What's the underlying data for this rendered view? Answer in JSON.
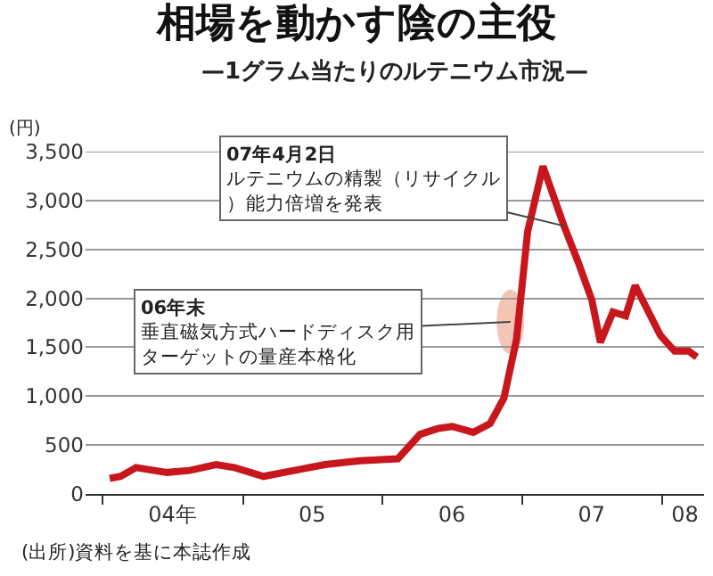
{
  "chart_data": {
    "type": "line",
    "title": "相場を動かす陰の主役",
    "subtitle": "—1グラム当たりのルテニウム市況—",
    "ylabel": "(円)",
    "x": [
      "2004-01-19",
      "2004-02-17",
      "2004-03-28",
      "2004-06-17",
      "2004-08-15",
      "2004-10-23",
      "2004-12-10",
      "2005-02-24",
      "2005-05-27",
      "2005-08-04",
      "2005-11-02",
      "2006-02-10",
      "2006-04-09",
      "2006-05-27",
      "2006-07-02",
      "2006-08-26",
      "2006-10-09",
      "2006-11-14",
      "2006-12-17",
      "2007-01-15",
      "2007-02-24",
      "2007-04-20",
      "2007-05-27",
      "2007-07-02",
      "2007-07-24",
      "2007-08-26",
      "2007-09-28",
      "2007-10-23",
      "2007-12-28",
      "2008-02-03",
      "2008-03-11",
      "2008-04-01"
    ],
    "series": [
      {
        "color": "#c8161d",
        "values": [
          160,
          180,
          270,
          220,
          240,
          300,
          270,
          180,
          250,
          300,
          340,
          360,
          610,
          670,
          690,
          630,
          720,
          980,
          1580,
          2680,
          3350,
          2740,
          2370,
          1980,
          1550,
          1860,
          1820,
          2130,
          1620,
          1460,
          1460,
          1400
        ]
      }
    ],
    "xlim": [
      "2003-11-17",
      "2008-04-20"
    ],
    "xticks": [
      {
        "value": "2004-01-01",
        "label": null
      },
      {
        "value": "2004-07-01",
        "label": "04年"
      },
      {
        "value": "2005-01-01",
        "label": null
      },
      {
        "value": "2005-07-01",
        "label": "05"
      },
      {
        "value": "2006-01-01",
        "label": null
      },
      {
        "value": "2006-07-01",
        "label": "06"
      },
      {
        "value": "2007-01-01",
        "label": null
      },
      {
        "value": "2007-07-01",
        "label": "07"
      },
      {
        "value": "2008-01-01",
        "label": null
      },
      {
        "value": "2008-03-01",
        "label": "08"
      }
    ],
    "ylim": [
      0,
      3500
    ],
    "yticks": [
      0,
      500,
      {
        "value": 1000,
        "label": "1,000"
      },
      {
        "value": 1500,
        "label": "1,500"
      },
      {
        "value": 2000,
        "label": "2,000"
      },
      {
        "value": 2500,
        "label": "2,500"
      },
      {
        "value": 3000,
        "label": "3,000"
      },
      {
        "value": 3500,
        "label": "3,500"
      }
    ],
    "grid": "y",
    "marker": "none",
    "line_style": "solid",
    "annotations": [
      "06年末",
      {
        "text": "垂直磁気方式ハードディスク用ターゲットの量産本格化",
        "x": "2006-12-01",
        "y": 1760
      },
      "07年4月2日",
      {
        "text": "ルテニウムの精製（リサイクル）能力倍増を発表",
        "x": "2007-04-20",
        "y": 2740
      },
      "(出所)資料を基に本誌作成"
    ]
  }
}
